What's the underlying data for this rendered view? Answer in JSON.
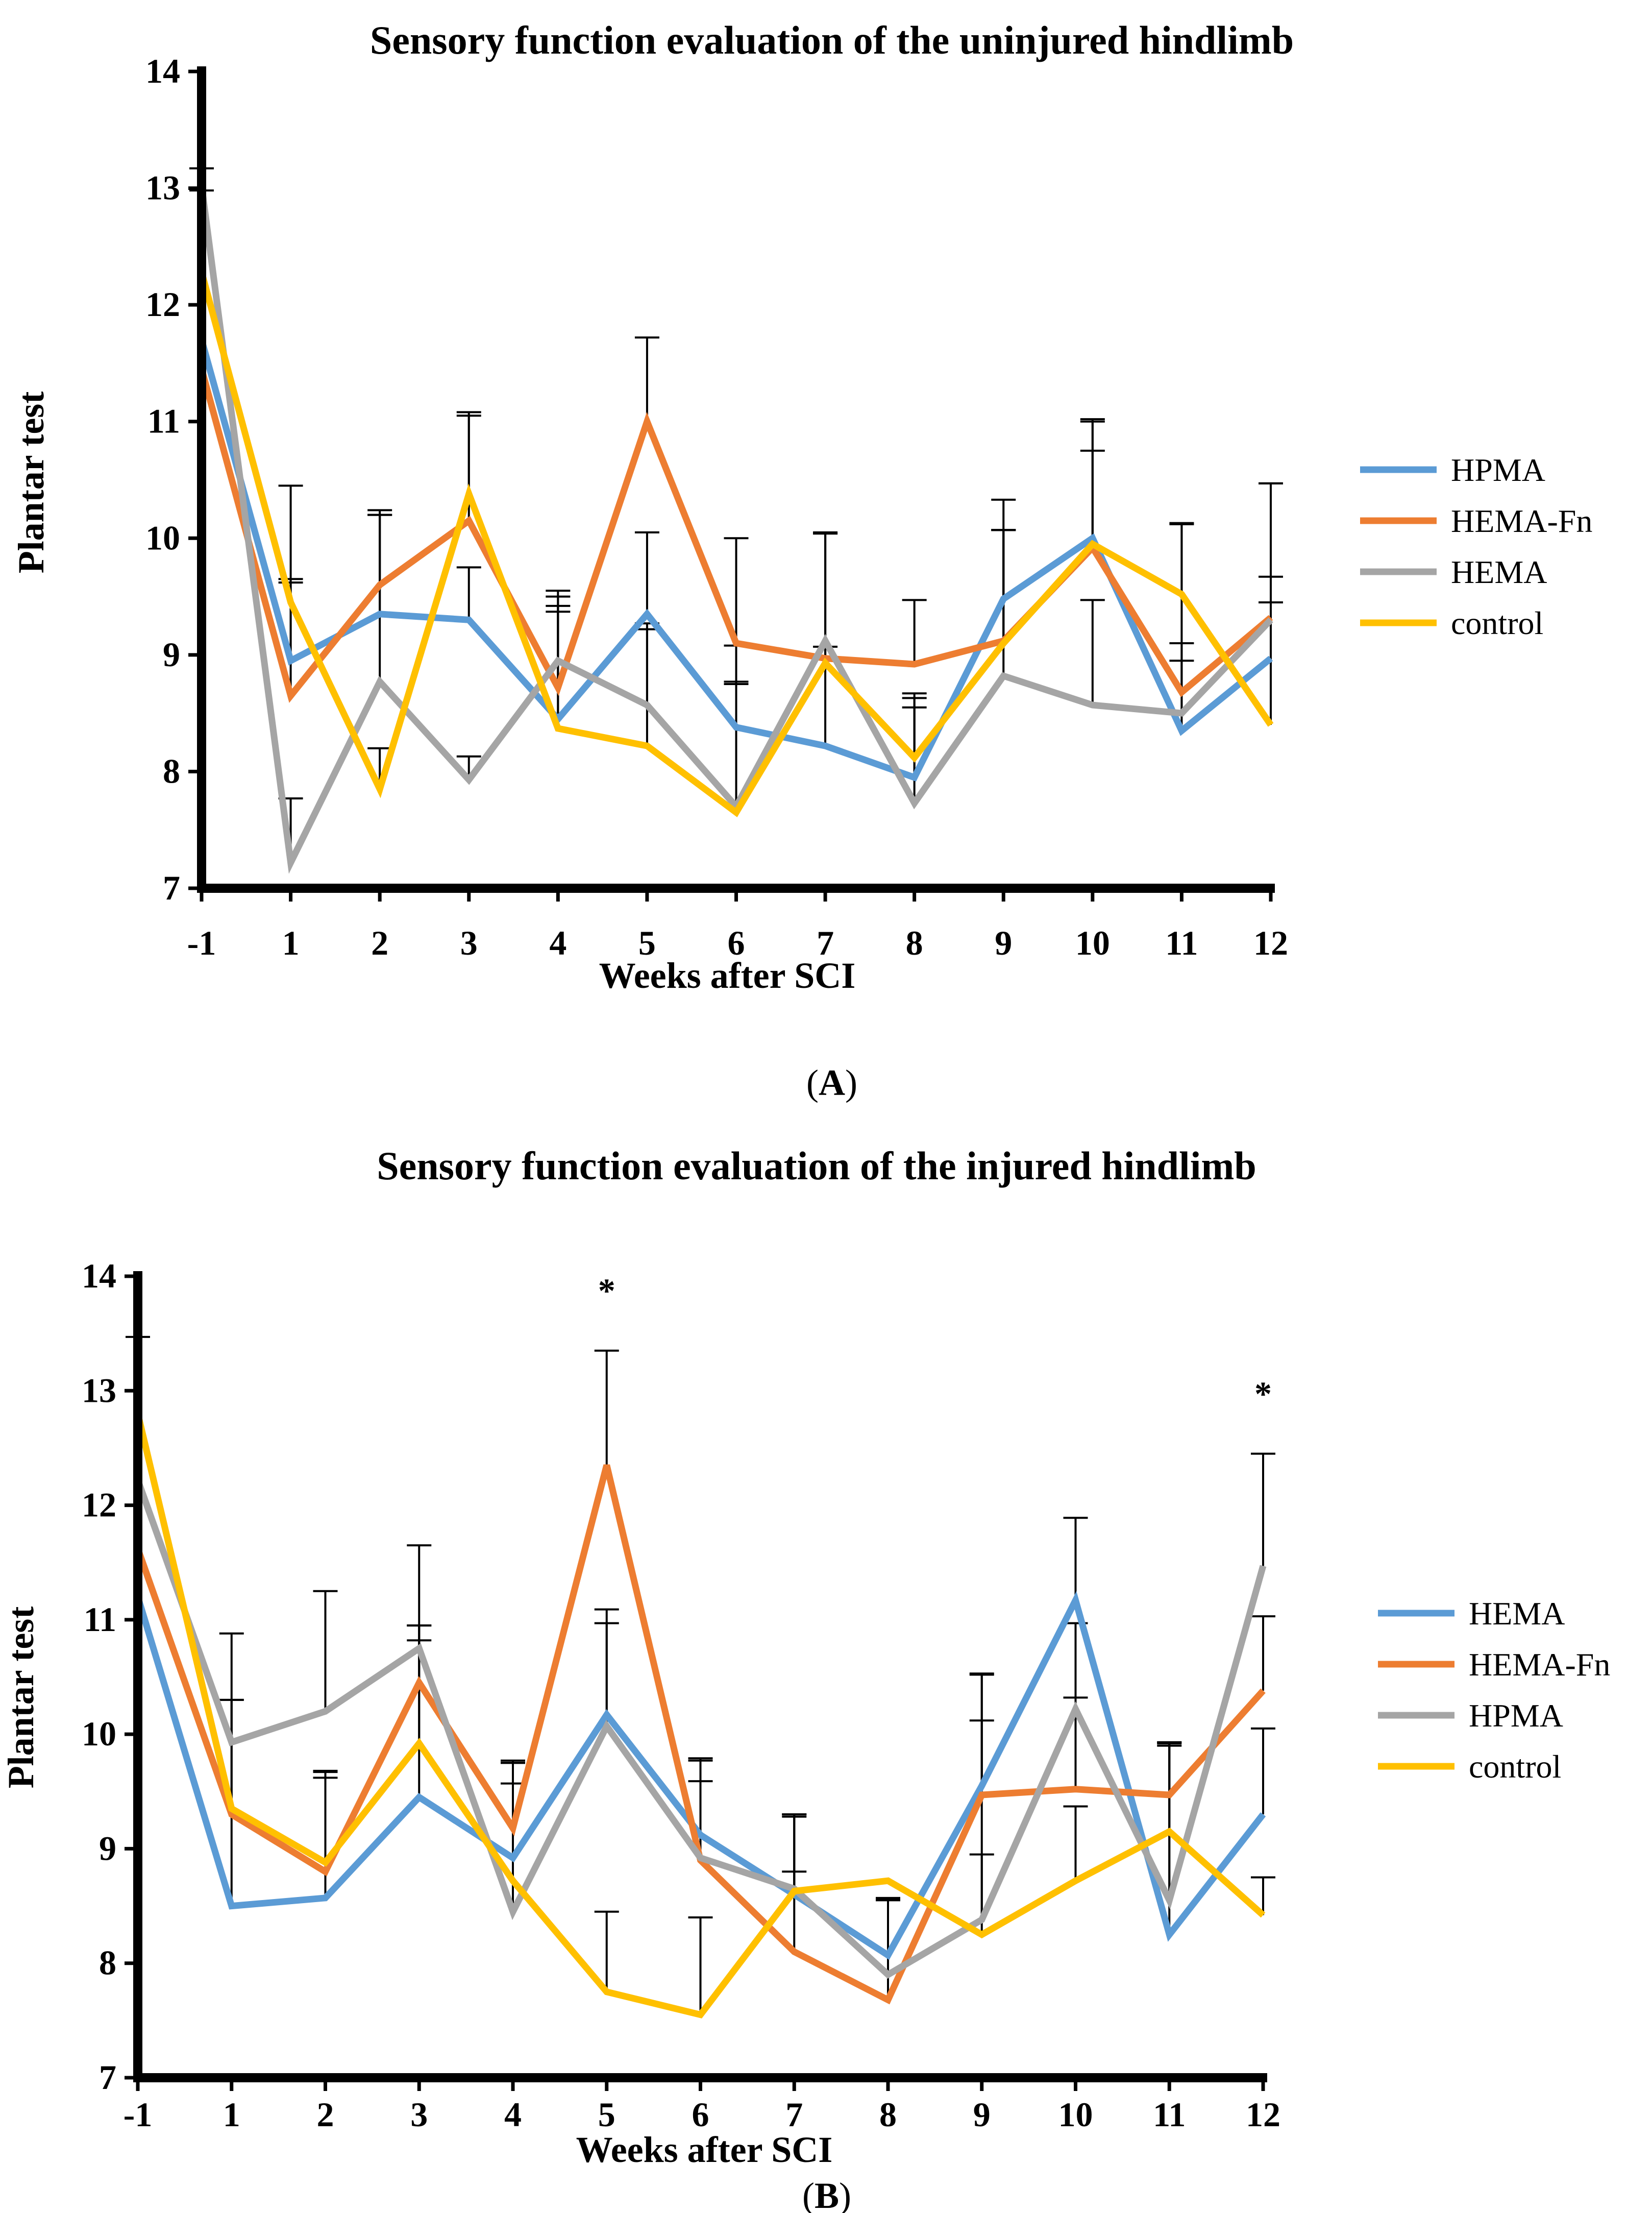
{
  "chart_data": [
    {
      "type": "line",
      "title": "Sensory function evaluation of the uninjured hindlimb",
      "xlabel": "Weeks after SCI",
      "ylabel": "Plantar test",
      "panel_label_pre": "(",
      "panel_label_letter": "A",
      "panel_label_post": ")",
      "x": [
        "-1",
        "1",
        "2",
        "3",
        "4",
        "5",
        "6",
        "7",
        "8",
        "9",
        "10",
        "11",
        "12"
      ],
      "ylim": [
        7,
        14
      ],
      "yticks": [
        "7",
        "8",
        "9",
        "10",
        "11",
        "12",
        "13",
        "14"
      ],
      "grid": false,
      "legend_position": "right",
      "series": [
        {
          "name": "HPMA",
          "color": "#5B9BD5",
          "values": [
            11.7,
            8.95,
            9.35,
            9.3,
            8.45,
            9.35,
            8.38,
            8.22,
            7.95,
            9.48,
            10.0,
            8.35,
            8.97
          ],
          "errors": [
            0,
            0.7,
            0.85,
            0.45,
            1.1,
            0.7,
            0.7,
            0.85,
            0.6,
            0.85,
            0.75,
            0.6,
            0.7
          ]
        },
        {
          "name": "HEMA-Fn",
          "color": "#ED7D31",
          "values": [
            11.45,
            8.65,
            9.6,
            10.15,
            8.72,
            11.0,
            9.1,
            8.97,
            8.92,
            9.12,
            9.92,
            8.68,
            9.32
          ],
          "errors": [
            0,
            0.97,
            0.6,
            0.9,
            0.65,
            0.72,
            0.9,
            1.07,
            0.55,
            0.95,
            1.1,
            1.45,
            1.15
          ]
        },
        {
          "name": "HEMA",
          "color": "#A5A5A5",
          "values": [
            13.02,
            7.22,
            8.77,
            7.93,
            8.95,
            8.57,
            7.7,
            9.12,
            7.73,
            8.82,
            8.57,
            8.5,
            9.3
          ],
          "errors": [
            0.15,
            0.55,
            1.47,
            0.2,
            0.55,
            0.7,
            1.05,
            0.92,
            0.9,
            1.25,
            0.9,
            0.6,
            1.17
          ]
        },
        {
          "name": "control",
          "color": "#FFC000",
          "values": [
            12.28,
            9.45,
            7.85,
            10.38,
            8.37,
            8.22,
            7.65,
            8.93,
            8.12,
            9.1,
            9.95,
            9.52,
            8.4
          ],
          "errors": [
            0.7,
            1.0,
            0.35,
            0.7,
            1.05,
            1.0,
            1.12,
            1.12,
            0.55,
            0.97,
            1.05,
            0.6,
            1.05
          ]
        }
      ]
    },
    {
      "type": "line",
      "title": "Sensory function evaluation of the injured hindlimb",
      "xlabel": "Weeks after SCI",
      "ylabel": "Plantar test",
      "panel_label_pre": "(",
      "panel_label_letter": "B",
      "panel_label_post": ")",
      "x": [
        "-1",
        "1",
        "2",
        "3",
        "4",
        "5",
        "6",
        "7",
        "8",
        "9",
        "10",
        "11",
        "12"
      ],
      "ylim": [
        7,
        14
      ],
      "yticks": [
        "7",
        "8",
        "9",
        "10",
        "11",
        "12",
        "13",
        "14"
      ],
      "grid": false,
      "legend_position": "right",
      "annotations": [
        {
          "text": "*",
          "x": "5",
          "y": 13.95
        },
        {
          "text": "*",
          "x": "12",
          "y": 13.05
        }
      ],
      "series": [
        {
          "name": "HEMA",
          "color": "#5B9BD5",
          "values": [
            11.2,
            8.5,
            8.57,
            9.45,
            8.92,
            10.17,
            9.12,
            8.6,
            8.07,
            9.55,
            11.17,
            8.25,
            9.3
          ],
          "errors": [
            0,
            1.8,
            1.05,
            1.5,
            0.85,
            0.92,
            0.67,
            0.7,
            0.48,
            0.97,
            0.72,
            1.68,
            0.75
          ]
        },
        {
          "name": "HEMA-Fn",
          "color": "#ED7D31",
          "values": [
            11.62,
            9.3,
            8.8,
            10.45,
            9.18,
            12.35,
            8.9,
            8.1,
            7.68,
            9.47,
            9.52,
            9.47,
            10.38
          ],
          "errors": [
            0,
            1.0,
            0.87,
            0.5,
            0.57,
            1.0,
            0.87,
            0.7,
            0.88,
            0.65,
            0.8,
            0.45,
            0.65
          ]
        },
        {
          "name": "HPMA",
          "color": "#A5A5A5",
          "values": [
            12.22,
            9.93,
            10.2,
            10.75,
            8.45,
            10.07,
            8.92,
            8.65,
            7.9,
            8.38,
            10.22,
            8.55,
            11.47
          ],
          "errors": [
            1.25,
            0.95,
            1.05,
            0.9,
            1.3,
            0.9,
            0.67,
            0.65,
            0.67,
            2.15,
            0.75,
            1.35,
            0.98
          ]
        },
        {
          "name": "control",
          "color": "#FFC000",
          "values": [
            12.8,
            9.35,
            8.88,
            9.92,
            8.72,
            7.75,
            7.55,
            8.63,
            8.72,
            8.25,
            8.72,
            9.15,
            8.42
          ],
          "errors": [
            0,
            0,
            0.8,
            0.9,
            0.85,
            0.7,
            0.85,
            0.65,
            0,
            0.7,
            0.65,
            0.78,
            0.33
          ]
        }
      ]
    }
  ]
}
